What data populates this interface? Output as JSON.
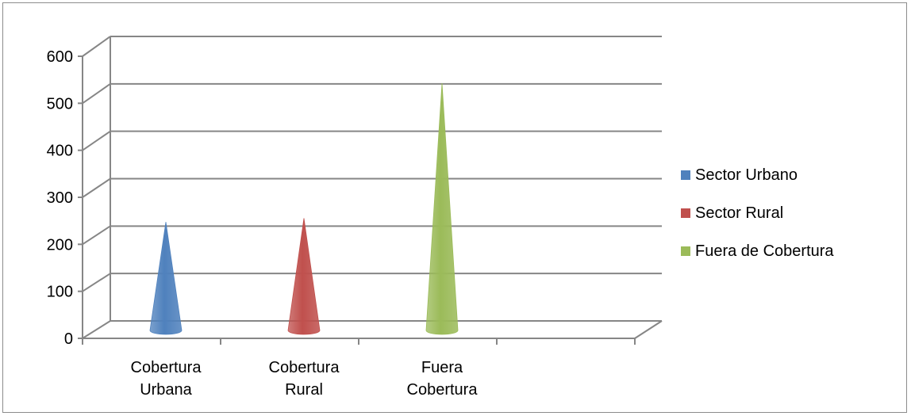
{
  "chart_data": {
    "type": "bar",
    "shape": "cone",
    "categories": [
      [
        "Cobertura",
        "Urbana"
      ],
      [
        "Cobertura",
        "Rural"
      ],
      [
        "Fuera",
        "Cobertura"
      ],
      []
    ],
    "series": [
      {
        "name": "Sector Urbano",
        "color": "#4f81bd",
        "values": [
          228,
          null,
          null,
          null
        ]
      },
      {
        "name": "Sector Rural",
        "color": "#c0504d",
        "values": [
          null,
          236,
          null,
          null
        ]
      },
      {
        "name": "Fuera de Cobertura",
        "color": "#9bbb59",
        "values": [
          null,
          null,
          522,
          null
        ]
      }
    ],
    "ylim": [
      0,
      600
    ],
    "yticks": [
      0,
      100,
      200,
      300,
      400,
      500,
      600
    ],
    "grid": true,
    "legend_position": "right"
  }
}
